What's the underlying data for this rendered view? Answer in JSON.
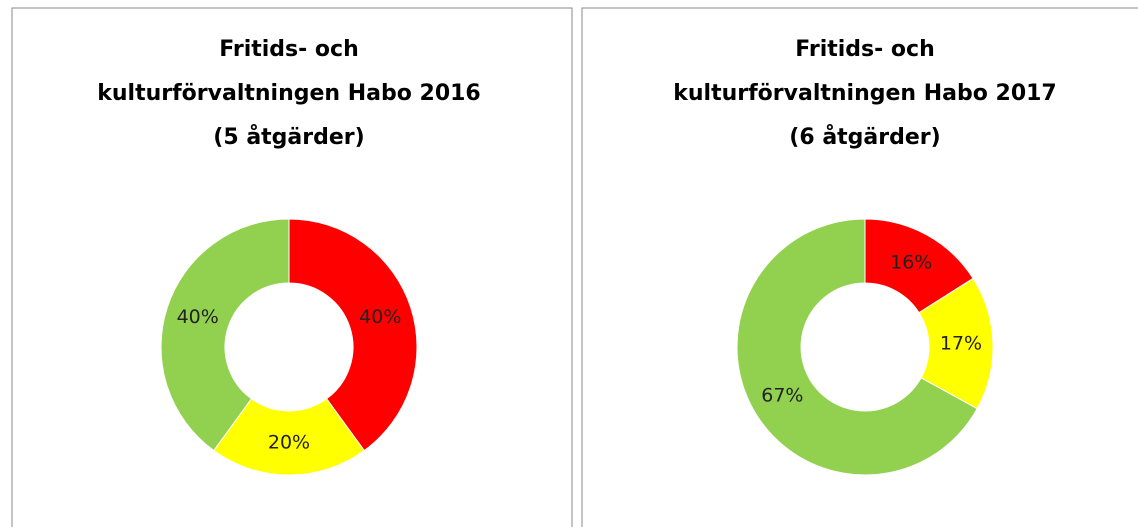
{
  "chart_data": [
    {
      "type": "donut",
      "title": [
        "Fritids- och",
        "kulturförvaltningen Habo 2016",
        "(5 åtgärder)"
      ],
      "values": [
        40,
        20,
        40
      ],
      "value_labels": [
        "40%",
        "20%",
        "40%"
      ],
      "colors": [
        "#ff0000",
        "#ffff00",
        "#92d050"
      ]
    },
    {
      "type": "donut",
      "title": [
        "Fritids- och",
        "kulturförvaltningen Habo 2017",
        "(6 åtgärder)"
      ],
      "values": [
        16,
        17,
        67
      ],
      "value_labels": [
        "16%",
        "17%",
        "67%"
      ],
      "colors": [
        "#ff0000",
        "#ffff00",
        "#92d050"
      ]
    }
  ]
}
